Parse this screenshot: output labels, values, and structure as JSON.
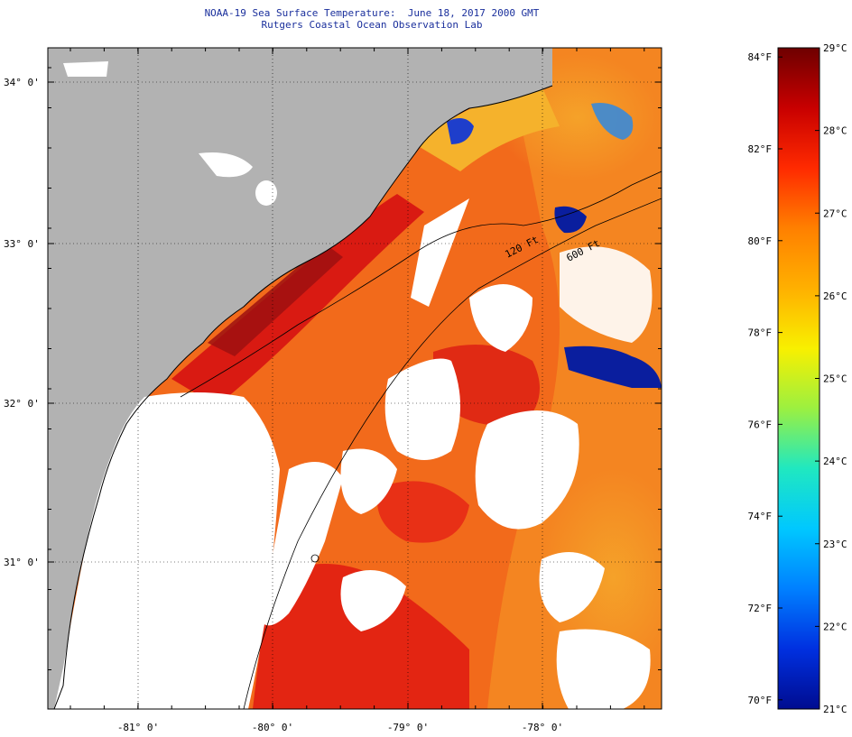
{
  "title": {
    "line1": "NOAA-19 Sea Surface Temperature:  June 18, 2017 2000 GMT",
    "line2": "Rutgers Coastal Ocean Observation Lab"
  },
  "map": {
    "lat_labels": [
      "34° 0'",
      "33° 0'",
      "32° 0'",
      "31° 0'"
    ],
    "lon_labels": [
      "-81° 0'",
      "-80° 0'",
      "-79° 0'",
      "-78° 0'"
    ],
    "contour_labels": [
      "120 Ft",
      "600 Ft"
    ],
    "colors": {
      "land": "#b2b2b2",
      "cloud": "#ffffff",
      "warm_sst": "#f26a1b",
      "hot_sst": "#d91a12",
      "cool_sst": "#f2a422",
      "cold_sst": "#0a1e9e"
    }
  },
  "colorbar": {
    "fahrenheit_labels": [
      "84°F",
      "82°F",
      "80°F",
      "78°F",
      "76°F",
      "74°F",
      "72°F",
      "70°F"
    ],
    "celsius_labels": [
      "29°C",
      "28°C",
      "27°C",
      "26°C",
      "25°C",
      "24°C",
      "23°C",
      "22°C",
      "21°C"
    ],
    "gradient_colors": [
      "#6e0000",
      "#c80000",
      "#ff2a00",
      "#ff8000",
      "#ffb000",
      "#f8f000",
      "#9cf040",
      "#20e8c0",
      "#00c8ff",
      "#0080ff",
      "#0030e0",
      "#000c90"
    ]
  }
}
